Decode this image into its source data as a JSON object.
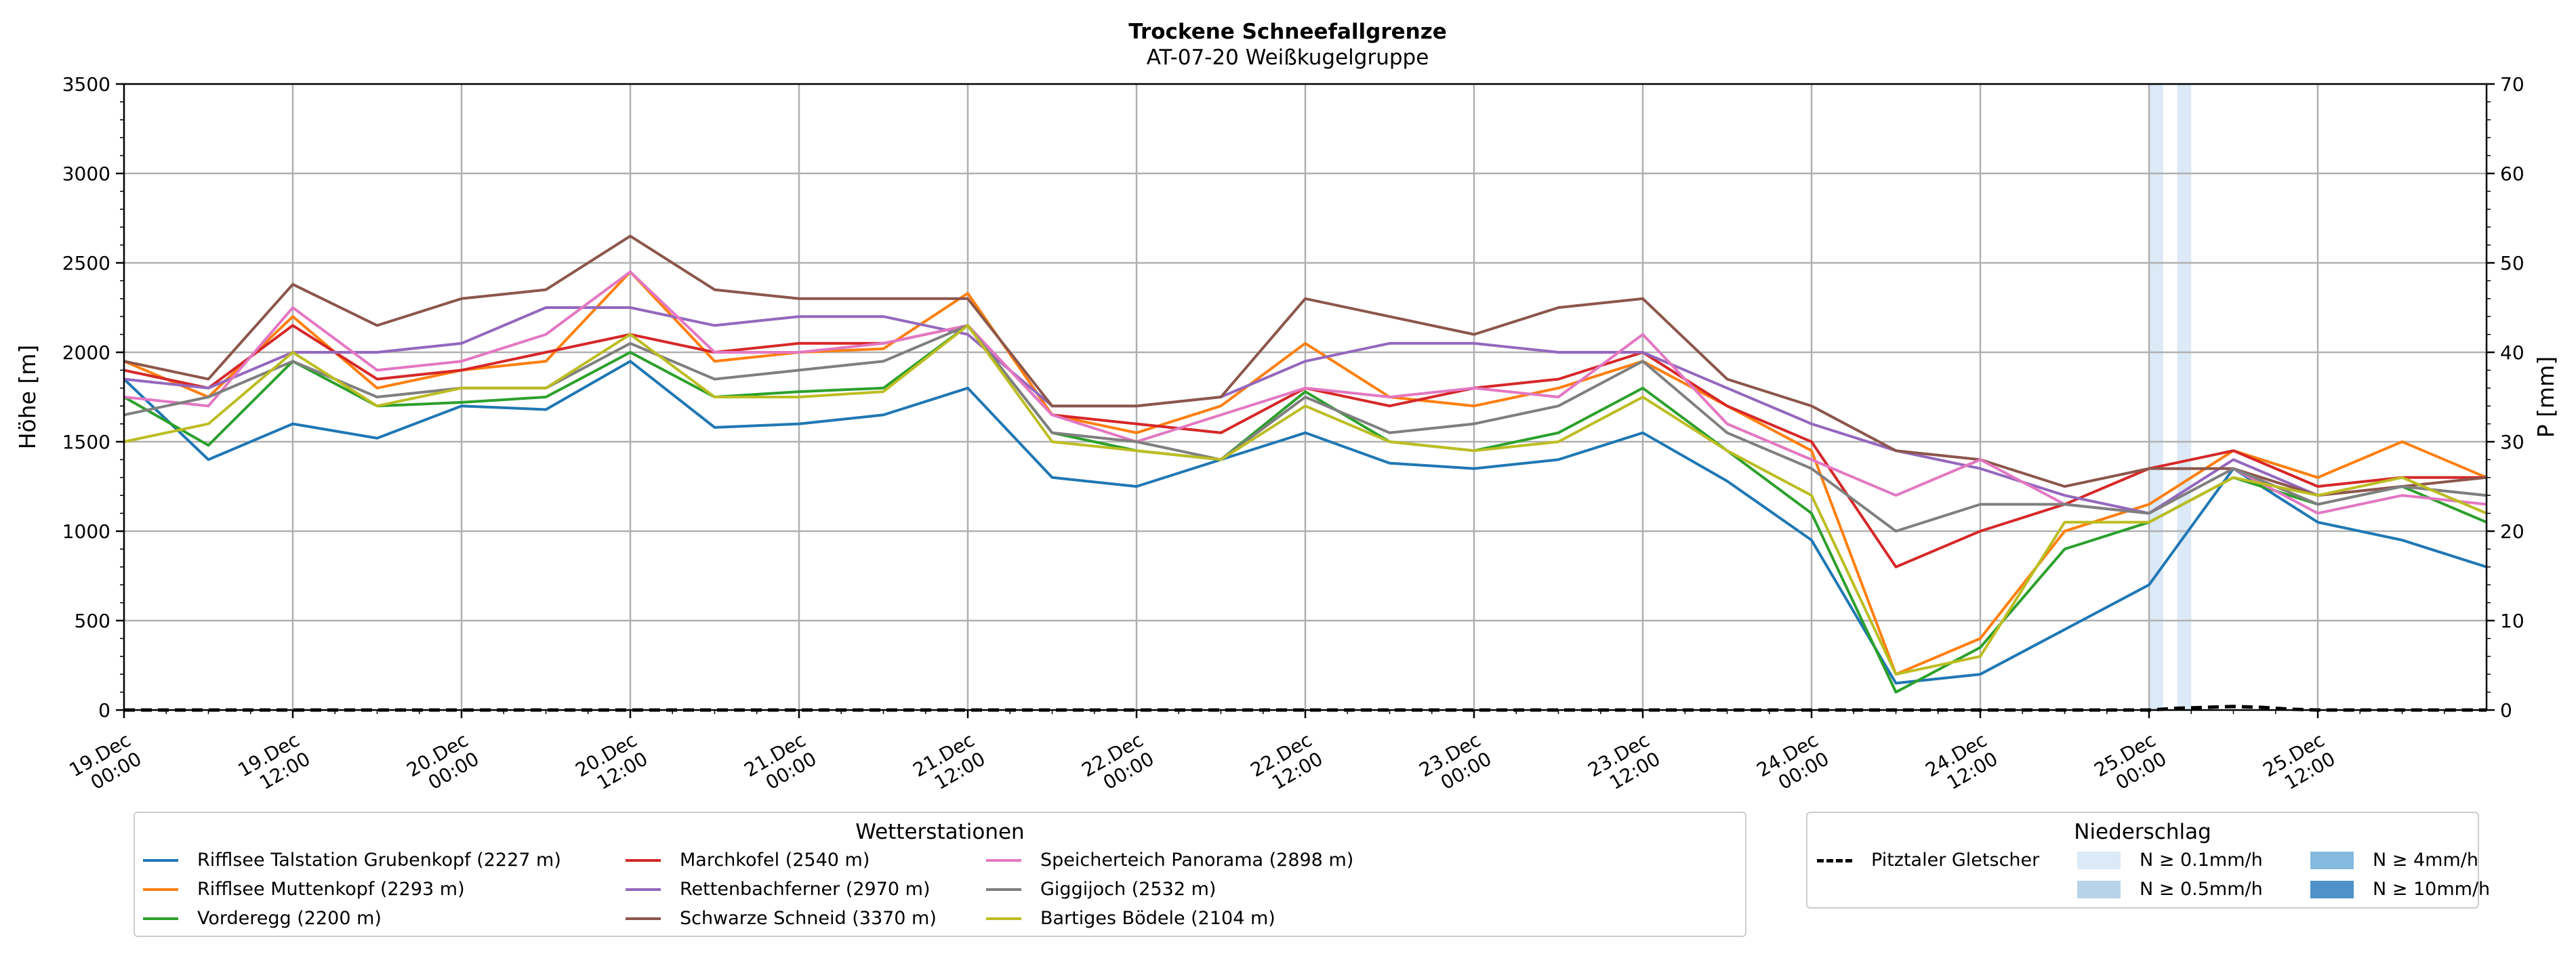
{
  "chart_data": {
    "type": "line",
    "title": "Trockene Schneefallgrenze",
    "subtitle": "AT-07-20 Weißkugelgruppe",
    "ylabel": "Höhe [m]",
    "y2label": "P [mm]",
    "ylim": [
      0,
      3500
    ],
    "y2lim": [
      0,
      70
    ],
    "yticks": [
      "0",
      "500",
      "1000",
      "1500",
      "2000",
      "2500",
      "3000",
      "3500"
    ],
    "y2ticks": [
      "0",
      "10",
      "20",
      "30",
      "40",
      "50",
      "60",
      "70"
    ],
    "xlim_hours": [
      0,
      168
    ],
    "xticks": [
      {
        "day": "19.Dec",
        "time": "00:00"
      },
      {
        "day": "19.Dec",
        "time": "12:00"
      },
      {
        "day": "20.Dec",
        "time": "00:00"
      },
      {
        "day": "20.Dec",
        "time": "12:00"
      },
      {
        "day": "21.Dec",
        "time": "00:00"
      },
      {
        "day": "21.Dec",
        "time": "12:00"
      },
      {
        "day": "22.Dec",
        "time": "00:00"
      },
      {
        "day": "22.Dec",
        "time": "12:00"
      },
      {
        "day": "23.Dec",
        "time": "00:00"
      },
      {
        "day": "23.Dec",
        "time": "12:00"
      },
      {
        "day": "24.Dec",
        "time": "00:00"
      },
      {
        "day": "24.Dec",
        "time": "12:00"
      },
      {
        "day": "25.Dec",
        "time": "00:00"
      },
      {
        "day": "25.Dec",
        "time": "12:00"
      }
    ],
    "x_hours": [
      0,
      6,
      12,
      18,
      24,
      30,
      36,
      42,
      48,
      54,
      60,
      66,
      72,
      78,
      84,
      90,
      96,
      102,
      108,
      114,
      120,
      126,
      132,
      138,
      144,
      150,
      156,
      162,
      168
    ],
    "series": [
      {
        "name": "Rifflsee Talstation Grubenkopf (2227 m)",
        "color": "#1f77b4",
        "values": [
          1850,
          1400,
          1600,
          1520,
          1700,
          1680,
          1950,
          1580,
          1600,
          1650,
          1800,
          1300,
          1250,
          1400,
          1550,
          1380,
          1350,
          1400,
          1550,
          1280,
          950,
          150,
          200,
          450,
          700,
          1350,
          1050,
          950,
          800
        ]
      },
      {
        "name": "Rifflsee Muttenkopf (2293 m)",
        "color": "#ff7f0e",
        "values": [
          1950,
          1750,
          2200,
          1800,
          1900,
          1950,
          2450,
          1950,
          2000,
          2020,
          2330,
          1650,
          1550,
          1700,
          2050,
          1750,
          1700,
          1800,
          1950,
          1700,
          1450,
          200,
          400,
          1000,
          1150,
          1450,
          1300,
          1500,
          1300
        ]
      },
      {
        "name": "Vorderegg (2200 m)",
        "color": "#2ca02c",
        "values": [
          1750,
          1480,
          1950,
          1700,
          1720,
          1750,
          2000,
          1750,
          1780,
          1800,
          2150,
          1550,
          1450,
          1400,
          1780,
          1500,
          1450,
          1550,
          1800,
          1450,
          1100,
          100,
          350,
          900,
          1050,
          1300,
          1150,
          1250,
          1050
        ]
      },
      {
        "name": "Marchkofel (2540 m)",
        "color": "#d62728",
        "values": [
          1900,
          1800,
          2150,
          1850,
          1900,
          2000,
          2100,
          2000,
          2050,
          2050,
          2150,
          1650,
          1600,
          1550,
          1800,
          1700,
          1800,
          1850,
          2000,
          1700,
          1500,
          800,
          1000,
          1150,
          1350,
          1450,
          1250,
          1300,
          1300
        ]
      },
      {
        "name": "Rettenbachferner (2970 m)",
        "color": "#9467bd",
        "values": [
          1850,
          1800,
          2000,
          2000,
          2050,
          2250,
          2250,
          2150,
          2200,
          2200,
          2100,
          1700,
          1700,
          1750,
          1950,
          2050,
          2050,
          2000,
          2000,
          1800,
          1600,
          1450,
          1350,
          1200,
          1100,
          1400,
          1200,
          1250,
          1200
        ]
      },
      {
        "name": "Schwarze Schneid (3370 m)",
        "color": "#8c564b",
        "values": [
          1950,
          1850,
          2380,
          2150,
          2300,
          2350,
          2650,
          2350,
          2300,
          2300,
          2300,
          1700,
          1700,
          1750,
          2300,
          2200,
          2100,
          2250,
          2300,
          1850,
          1700,
          1450,
          1400,
          1250,
          1350,
          1350,
          1200,
          1250,
          1300
        ]
      },
      {
        "name": "Speicherteich Panorama (2898 m)",
        "color": "#e377c2",
        "values": [
          1750,
          1700,
          2250,
          1900,
          1950,
          2100,
          2450,
          2000,
          2000,
          2050,
          2150,
          1650,
          1500,
          1650,
          1800,
          1750,
          1800,
          1750,
          2100,
          1600,
          1400,
          1200,
          1400,
          1150,
          1100,
          1350,
          1100,
          1200,
          1150
        ]
      },
      {
        "name": "Giggijoch (2532 m)",
        "color": "#7f7f7f",
        "values": [
          1650,
          1750,
          1950,
          1750,
          1800,
          1800,
          2050,
          1850,
          1900,
          1950,
          2150,
          1550,
          1500,
          1400,
          1750,
          1550,
          1600,
          1700,
          1950,
          1550,
          1350,
          1000,
          1150,
          1150,
          1100,
          1350,
          1150,
          1250,
          1200
        ]
      },
      {
        "name": "Bartiges Bödele (2104 m)",
        "color": "#bcbd22",
        "values": [
          1500,
          1600,
          2000,
          1700,
          1800,
          1800,
          2100,
          1750,
          1750,
          1780,
          2150,
          1500,
          1450,
          1400,
          1700,
          1500,
          1450,
          1500,
          1750,
          1450,
          1200,
          200,
          300,
          1050,
          1050,
          1300,
          1200,
          1300,
          1100
        ]
      }
    ],
    "precipitation_legend_title": "Niederschlag",
    "precipitation_series": {
      "name": "Pitztaler Gletscher",
      "style": "dashed",
      "color": "#000000",
      "x_hours": [
        0,
        144,
        146,
        148,
        150,
        152,
        154,
        156,
        168
      ],
      "values_mm": [
        0,
        0,
        0.2,
        0.3,
        0.4,
        0.3,
        0.1,
        0,
        0
      ]
    },
    "precipitation_bands": [
      {
        "label": "N ≥ 0.1mm/h",
        "color": "#dce9f6"
      },
      {
        "label": "N ≥ 0.5mm/h",
        "color": "#b7d3ea"
      },
      {
        "label": "N ≥ 4mm/h",
        "color": "#86b9df"
      },
      {
        "label": "N ≥ 10mm/h",
        "color": "#4e92c9"
      }
    ],
    "shaded_hours": [
      [
        144,
        145
      ],
      [
        146,
        147
      ]
    ],
    "station_legend_title": "Wetterstationen"
  }
}
